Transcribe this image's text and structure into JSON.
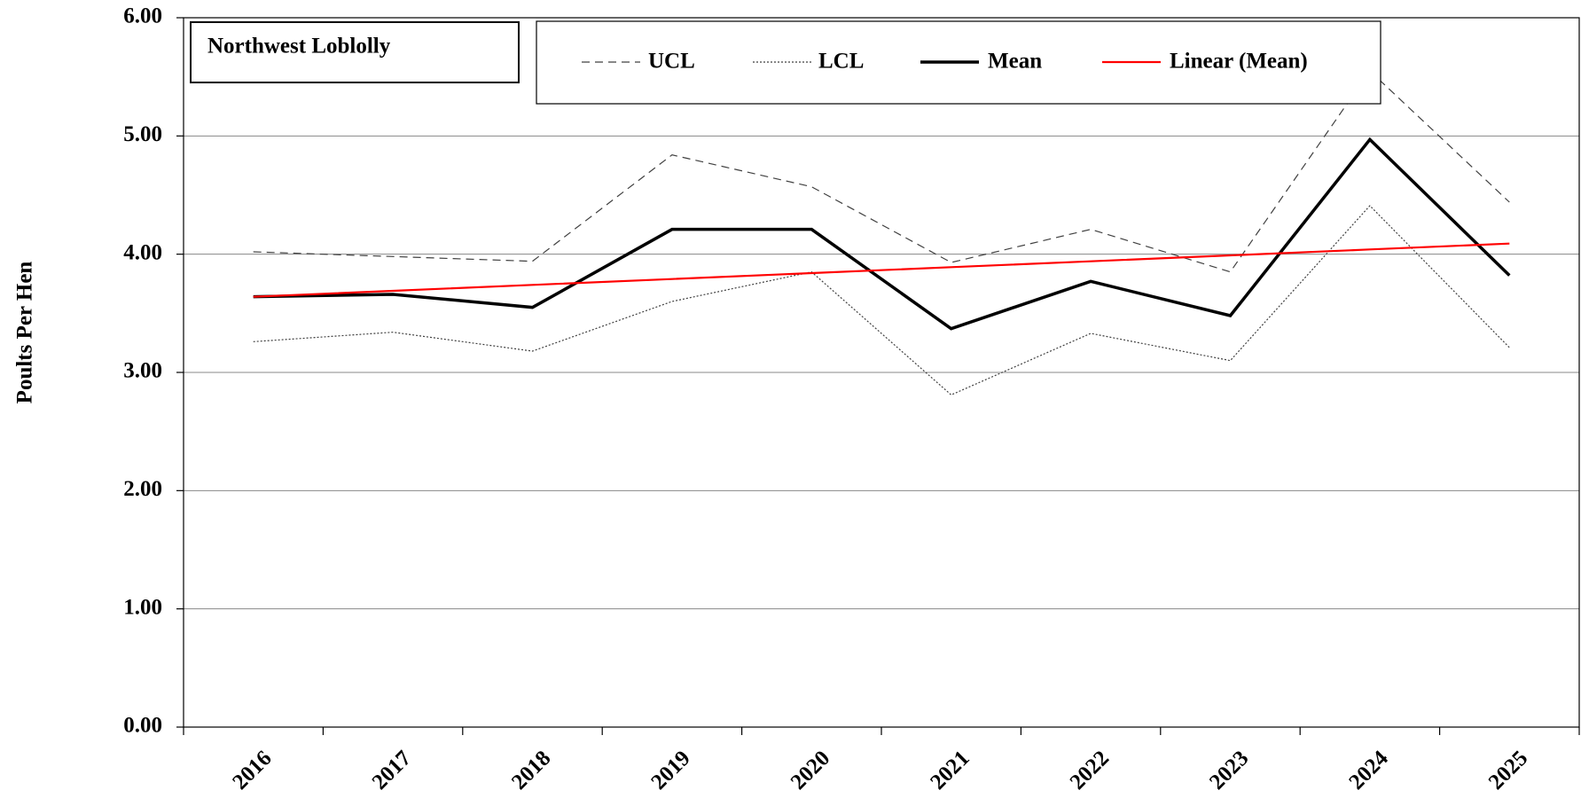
{
  "chart_data": {
    "type": "line",
    "title": "Northwest Loblolly",
    "y_label": "Poults Per Hen",
    "categories": [
      "2016",
      "2017",
      "2018",
      "2019",
      "2020",
      "2021",
      "2022",
      "2023",
      "2024",
      "2025"
    ],
    "series": [
      {
        "name": "UCL",
        "color": "#404040",
        "dash": "dashed",
        "values": [
          4.02,
          3.98,
          3.94,
          4.84,
          4.57,
          3.93,
          4.21,
          3.85,
          5.55,
          4.44
        ]
      },
      {
        "name": "LCL",
        "color": "#404040",
        "dash": "dotted",
        "values": [
          3.26,
          3.34,
          3.18,
          3.6,
          3.85,
          2.81,
          3.33,
          3.1,
          4.41,
          3.21
        ]
      },
      {
        "name": "Mean",
        "color": "#000000",
        "dash": "solid",
        "values": [
          3.64,
          3.66,
          3.55,
          4.21,
          4.21,
          3.37,
          3.77,
          3.48,
          4.97,
          3.82
        ]
      },
      {
        "name": "Linear (Mean)",
        "color": "#ff0000",
        "dash": "solid",
        "values": [
          3.64,
          3.69,
          3.74,
          3.79,
          3.84,
          3.89,
          3.94,
          3.99,
          4.04,
          4.09
        ]
      }
    ],
    "ylim": [
      0,
      6
    ],
    "yticks": [
      {
        "value": 0,
        "label": "0.00"
      },
      {
        "value": 1,
        "label": "1.00"
      },
      {
        "value": 2,
        "label": "2.00"
      },
      {
        "value": 3,
        "label": "3.00"
      },
      {
        "value": 4,
        "label": "4.00"
      },
      {
        "value": 5,
        "label": "5.00"
      },
      {
        "value": 6,
        "label": "6.00"
      }
    ],
    "grid": true,
    "legend": "top"
  }
}
